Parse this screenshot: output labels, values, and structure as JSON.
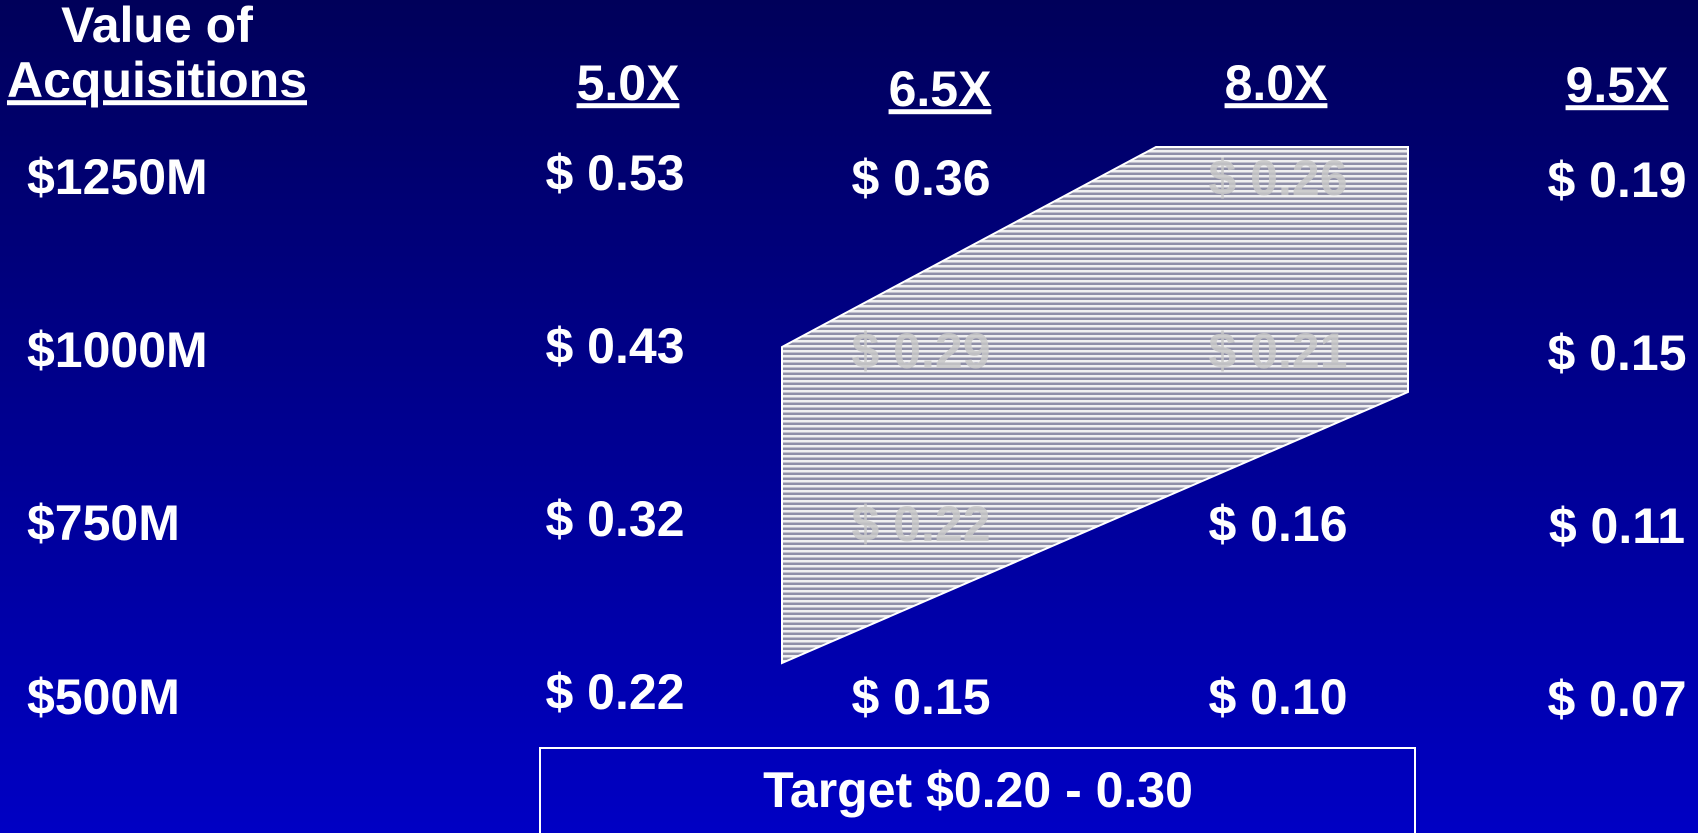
{
  "header": {
    "line1": "Value of",
    "line2": "Acquisitions"
  },
  "columns": [
    "5.0X",
    "6.5X",
    "8.0X",
    "9.5X"
  ],
  "rows": [
    {
      "label": "$1250M",
      "cells": [
        "$ 0.53",
        "$ 0.36",
        "$ 0.26",
        "$ 0.19"
      ]
    },
    {
      "label": "$1000M",
      "cells": [
        "$ 0.43",
        "$ 0.29",
        "$ 0.21",
        "$ 0.15"
      ]
    },
    {
      "label": "$750M",
      "cells": [
        "$ 0.32",
        "$ 0.22",
        "$ 0.16",
        "$ 0.11"
      ]
    },
    {
      "label": "$500M",
      "cells": [
        "$ 0.22",
        "$ 0.15",
        "$ 0.10",
        "$ 0.07"
      ]
    }
  ],
  "target": "Target $0.20 - 0.30"
}
